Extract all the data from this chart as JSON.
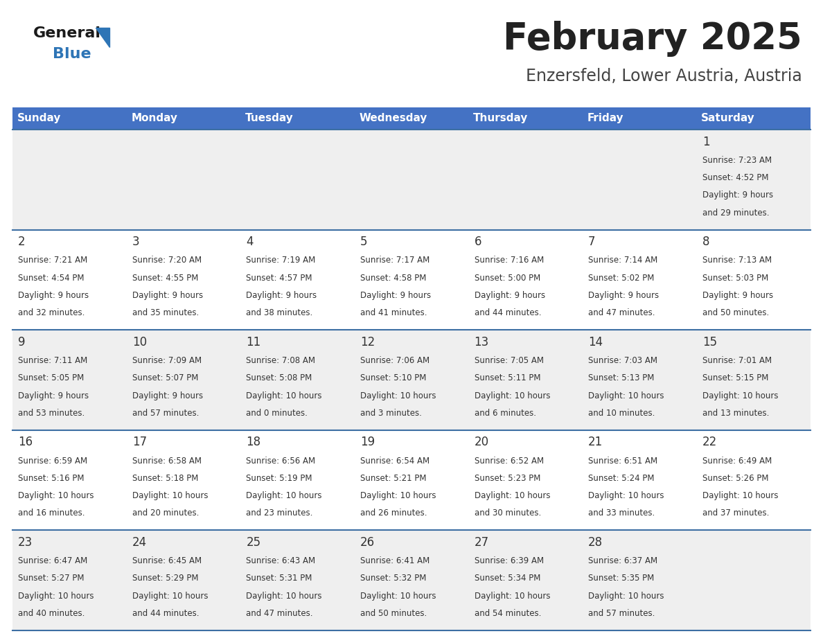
{
  "title": "February 2025",
  "subtitle": "Enzersfeld, Lower Austria, Austria",
  "header_bg": "#4472C4",
  "header_text": "#ffffff",
  "header_days": [
    "Sunday",
    "Monday",
    "Tuesday",
    "Wednesday",
    "Thursday",
    "Friday",
    "Saturday"
  ],
  "row_bg_even": "#efefef",
  "row_bg_odd": "#ffffff",
  "day_number_color": "#333333",
  "text_color": "#333333",
  "border_color": "#3D6FA3",
  "title_color": "#222222",
  "subtitle_color": "#444444",
  "generalblue_black": "#1a1a1a",
  "generalblue_blue": "#2e75b6",
  "calendar_data": [
    {
      "day": 1,
      "col": 6,
      "row": 0,
      "sunrise": "7:23 AM",
      "sunset": "4:52 PM",
      "daylight": "9 hours and 29 minutes"
    },
    {
      "day": 2,
      "col": 0,
      "row": 1,
      "sunrise": "7:21 AM",
      "sunset": "4:54 PM",
      "daylight": "9 hours and 32 minutes"
    },
    {
      "day": 3,
      "col": 1,
      "row": 1,
      "sunrise": "7:20 AM",
      "sunset": "4:55 PM",
      "daylight": "9 hours and 35 minutes"
    },
    {
      "day": 4,
      "col": 2,
      "row": 1,
      "sunrise": "7:19 AM",
      "sunset": "4:57 PM",
      "daylight": "9 hours and 38 minutes"
    },
    {
      "day": 5,
      "col": 3,
      "row": 1,
      "sunrise": "7:17 AM",
      "sunset": "4:58 PM",
      "daylight": "9 hours and 41 minutes"
    },
    {
      "day": 6,
      "col": 4,
      "row": 1,
      "sunrise": "7:16 AM",
      "sunset": "5:00 PM",
      "daylight": "9 hours and 44 minutes"
    },
    {
      "day": 7,
      "col": 5,
      "row": 1,
      "sunrise": "7:14 AM",
      "sunset": "5:02 PM",
      "daylight": "9 hours and 47 minutes"
    },
    {
      "day": 8,
      "col": 6,
      "row": 1,
      "sunrise": "7:13 AM",
      "sunset": "5:03 PM",
      "daylight": "9 hours and 50 minutes"
    },
    {
      "day": 9,
      "col": 0,
      "row": 2,
      "sunrise": "7:11 AM",
      "sunset": "5:05 PM",
      "daylight": "9 hours and 53 minutes"
    },
    {
      "day": 10,
      "col": 1,
      "row": 2,
      "sunrise": "7:09 AM",
      "sunset": "5:07 PM",
      "daylight": "9 hours and 57 minutes"
    },
    {
      "day": 11,
      "col": 2,
      "row": 2,
      "sunrise": "7:08 AM",
      "sunset": "5:08 PM",
      "daylight": "10 hours and 0 minutes"
    },
    {
      "day": 12,
      "col": 3,
      "row": 2,
      "sunrise": "7:06 AM",
      "sunset": "5:10 PM",
      "daylight": "10 hours and 3 minutes"
    },
    {
      "day": 13,
      "col": 4,
      "row": 2,
      "sunrise": "7:05 AM",
      "sunset": "5:11 PM",
      "daylight": "10 hours and 6 minutes"
    },
    {
      "day": 14,
      "col": 5,
      "row": 2,
      "sunrise": "7:03 AM",
      "sunset": "5:13 PM",
      "daylight": "10 hours and 10 minutes"
    },
    {
      "day": 15,
      "col": 6,
      "row": 2,
      "sunrise": "7:01 AM",
      "sunset": "5:15 PM",
      "daylight": "10 hours and 13 minutes"
    },
    {
      "day": 16,
      "col": 0,
      "row": 3,
      "sunrise": "6:59 AM",
      "sunset": "5:16 PM",
      "daylight": "10 hours and 16 minutes"
    },
    {
      "day": 17,
      "col": 1,
      "row": 3,
      "sunrise": "6:58 AM",
      "sunset": "5:18 PM",
      "daylight": "10 hours and 20 minutes"
    },
    {
      "day": 18,
      "col": 2,
      "row": 3,
      "sunrise": "6:56 AM",
      "sunset": "5:19 PM",
      "daylight": "10 hours and 23 minutes"
    },
    {
      "day": 19,
      "col": 3,
      "row": 3,
      "sunrise": "6:54 AM",
      "sunset": "5:21 PM",
      "daylight": "10 hours and 26 minutes"
    },
    {
      "day": 20,
      "col": 4,
      "row": 3,
      "sunrise": "6:52 AM",
      "sunset": "5:23 PM",
      "daylight": "10 hours and 30 minutes"
    },
    {
      "day": 21,
      "col": 5,
      "row": 3,
      "sunrise": "6:51 AM",
      "sunset": "5:24 PM",
      "daylight": "10 hours and 33 minutes"
    },
    {
      "day": 22,
      "col": 6,
      "row": 3,
      "sunrise": "6:49 AM",
      "sunset": "5:26 PM",
      "daylight": "10 hours and 37 minutes"
    },
    {
      "day": 23,
      "col": 0,
      "row": 4,
      "sunrise": "6:47 AM",
      "sunset": "5:27 PM",
      "daylight": "10 hours and 40 minutes"
    },
    {
      "day": 24,
      "col": 1,
      "row": 4,
      "sunrise": "6:45 AM",
      "sunset": "5:29 PM",
      "daylight": "10 hours and 44 minutes"
    },
    {
      "day": 25,
      "col": 2,
      "row": 4,
      "sunrise": "6:43 AM",
      "sunset": "5:31 PM",
      "daylight": "10 hours and 47 minutes"
    },
    {
      "day": 26,
      "col": 3,
      "row": 4,
      "sunrise": "6:41 AM",
      "sunset": "5:32 PM",
      "daylight": "10 hours and 50 minutes"
    },
    {
      "day": 27,
      "col": 4,
      "row": 4,
      "sunrise": "6:39 AM",
      "sunset": "5:34 PM",
      "daylight": "10 hours and 54 minutes"
    },
    {
      "day": 28,
      "col": 5,
      "row": 4,
      "sunrise": "6:37 AM",
      "sunset": "5:35 PM",
      "daylight": "10 hours and 57 minutes"
    }
  ]
}
